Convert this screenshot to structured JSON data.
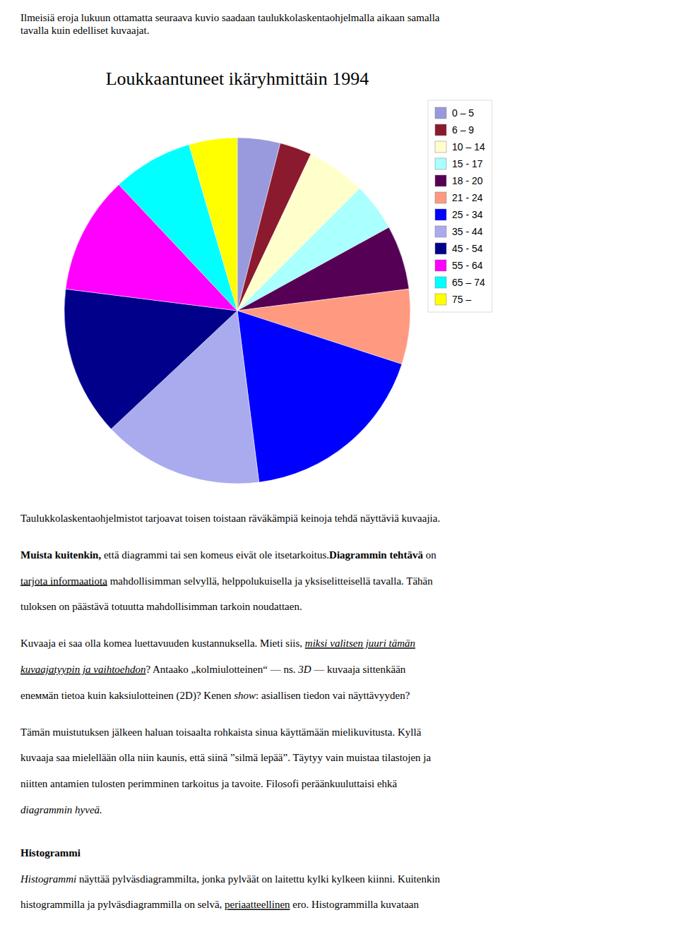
{
  "chart_data": {
    "type": "pie",
    "title": "Loukkaantuneet ikäryhmittäin 1994",
    "categories": [
      "0 – 5",
      "6 – 9",
      "10 – 14",
      "15 - 17",
      "18 - 20",
      "21 - 24",
      "25 - 34",
      "35 - 44",
      "45 - 54",
      "55 - 64",
      "65 – 74",
      "75 –"
    ],
    "values": [
      4.0,
      3.0,
      5.5,
      4.5,
      6.0,
      7.0,
      18.0,
      15.0,
      14.0,
      11.0,
      7.5,
      4.5
    ],
    "colors": [
      "#9999dd",
      "#8b1a2e",
      "#ffffcc",
      "#aaffff",
      "#550055",
      "#ff9980",
      "#0000ff",
      "#aaaaee",
      "#00008b",
      "#ff00ff",
      "#00ffff",
      "#ffff00"
    ],
    "legend": "upper left",
    "annotations": [
      [
        "Ilmeisiä eroja lukuun ottamatta seuraava kuvio saadaan taulukkolaskentaohjelmalla aikaan samalla"
      ],
      [
        "tavalla kuin edelliset kuvaajat."
      ],
      [
        "Taulukkolaskentaohjelmistot tarjoavat toisen toistaan räväkämpiä keinoja tehdä näyttäviä kuvaajia."
      ],
      [
        "Muista kuitenkin,",
        " että diagrammi tai sen komeus eivät ole itsetarkoitus.",
        "Diagrammin tehtävä",
        " on"
      ],
      [
        "tarjota informaatiota",
        " mahdollisimman selvyllä, helppolukuisella ja yksiselitteisellä tavalla. Tähän"
      ],
      [
        "tuloksen on päästävä totuutta mahdollisimman tarkoin noudattaen."
      ],
      [
        "Kuvaaja ei saa olla komea luettavuuden kustannuksella. Mieti siis, ",
        "miksi valitsen juuri tämän"
      ],
      [
        "kuvaajatyypin ja vaihtoehdon",
        "? Antaako „kolmiulotteinen“ — ns. ",
        "3D",
        " — kuvaaja sittenkään"
      ],
      [
        "enеммän tietoa kuin kaksiulotteinen (2D)? Kenen ",
        "show",
        ": asiallisen tiedon vai näyttävyyden?"
      ],
      [
        "Tämän muistutuksen jälkeen haluan toisaalta rohkaista sinua käyttämään mielikuvitusta. Kyllä"
      ],
      [
        "kuvaaja saa mielellään olla niin kaunis, että siinä ”silmä lepää”. Täytyy vain muistaa tilastojen ja"
      ],
      [
        "niitten antamien tulosten perimminen tarkoitus ja tavoite. Filosofi peräänkuuluttaisi ehkä"
      ],
      [
        "diagrammin hyveä."
      ],
      [
        "Histogrammi"
      ],
      [
        "Histogrammi",
        " näyttää pylväsdiagrammilta, jonka pylväät on laitettu kylki kylkeen kiinni. Kuitenkin"
      ],
      [
        "histogrammilla ja pylväsdiagrammilla on selvä, ",
        "periaatteellinen",
        " ero. Histogrammilla kuvataan"
      ]
    ]
  }
}
